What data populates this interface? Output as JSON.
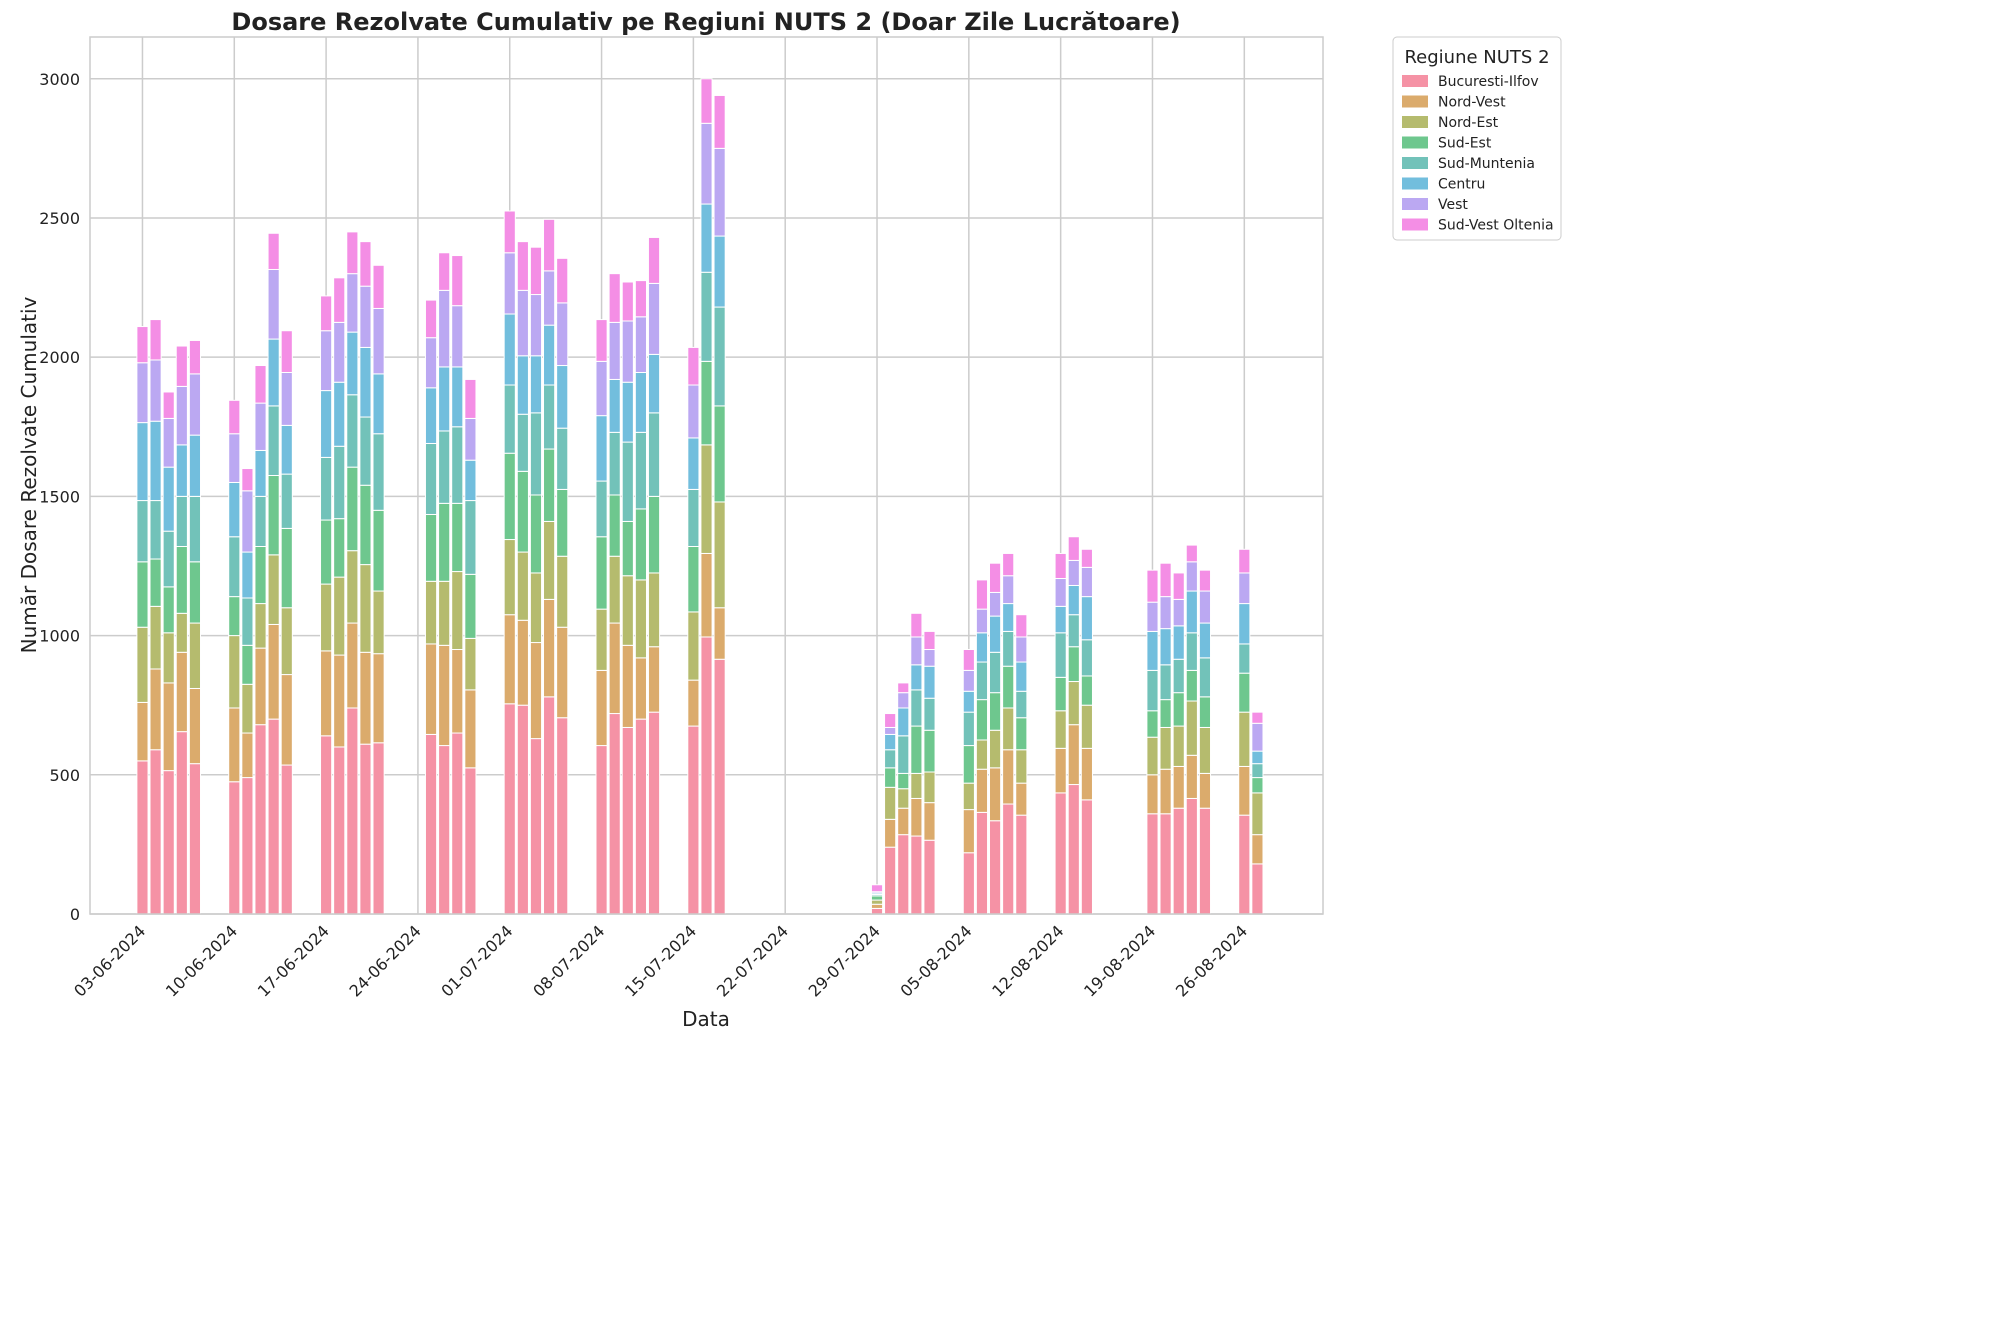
{
  "chart_data": {
    "type": "bar",
    "stacked": true,
    "title": "Dosare Rezolvate Cumulativ pe Regiuni NUTS 2 (Doar Zile Lucrătoare)",
    "xlabel": "Data",
    "ylabel": "Număr Dosare Rezolvate Cumulativ",
    "ylim": [
      0,
      3150
    ],
    "yticks": [
      0,
      500,
      1000,
      1500,
      2000,
      2500,
      3000
    ],
    "xticks": [
      "03-06-2024",
      "10-06-2024",
      "17-06-2024",
      "24-06-2024",
      "01-07-2024",
      "08-07-2024",
      "15-07-2024",
      "22-07-2024",
      "29-07-2024",
      "05-08-2024",
      "12-08-2024",
      "19-08-2024",
      "26-08-2024"
    ],
    "xlim_dates": [
      "30-05-2024",
      "01-09-2024"
    ],
    "grid": true,
    "legend": {
      "title": "Regiune NUTS 2",
      "placement": "outside-top-right"
    },
    "series_names": [
      "Bucuresti-Ilfov",
      "Nord-Vest",
      "Nord-Est",
      "Sud-Est",
      "Sud-Muntenia",
      "Centru",
      "Vest",
      "Sud-Vest Oltenia"
    ],
    "series_colors": [
      "#f592a5",
      "#dbab6c",
      "#b5bb6e",
      "#6ec78e",
      "#72c2b9",
      "#72bedd",
      "#bba8f2",
      "#f48ee5"
    ],
    "bars": [
      {
        "date": "03-06-2024",
        "values": [
          550,
          210,
          270,
          235,
          220,
          280,
          215,
          130
        ]
      },
      {
        "date": "04-06-2024",
        "values": [
          590,
          290,
          225,
          170,
          210,
          285,
          220,
          145
        ]
      },
      {
        "date": "05-06-2024",
        "values": [
          515,
          315,
          180,
          165,
          200,
          230,
          175,
          95
        ]
      },
      {
        "date": "06-06-2024",
        "values": [
          655,
          285,
          140,
          240,
          180,
          185,
          210,
          145
        ]
      },
      {
        "date": "07-06-2024",
        "values": [
          540,
          270,
          235,
          220,
          235,
          220,
          220,
          120
        ]
      },
      {
        "date": "10-06-2024",
        "values": [
          475,
          265,
          260,
          140,
          215,
          195,
          175,
          120
        ]
      },
      {
        "date": "11-06-2024",
        "values": [
          490,
          160,
          175,
          140,
          170,
          165,
          220,
          80
        ]
      },
      {
        "date": "12-06-2024",
        "values": [
          680,
          275,
          160,
          205,
          180,
          165,
          170,
          135
        ]
      },
      {
        "date": "13-06-2024",
        "values": [
          700,
          340,
          250,
          285,
          250,
          240,
          250,
          130
        ]
      },
      {
        "date": "14-06-2024",
        "values": [
          535,
          325,
          240,
          285,
          195,
          175,
          190,
          150
        ]
      },
      {
        "date": "17-06-2024",
        "values": [
          640,
          305,
          240,
          230,
          225,
          240,
          215,
          125
        ]
      },
      {
        "date": "18-06-2024",
        "values": [
          600,
          330,
          280,
          210,
          260,
          230,
          215,
          160
        ]
      },
      {
        "date": "19-06-2024",
        "values": [
          740,
          305,
          260,
          300,
          260,
          225,
          210,
          150
        ]
      },
      {
        "date": "20-06-2024",
        "values": [
          610,
          330,
          315,
          285,
          245,
          250,
          220,
          160
        ]
      },
      {
        "date": "21-06-2024",
        "values": [
          615,
          320,
          225,
          290,
          275,
          215,
          235,
          155
        ]
      },
      {
        "date": "25-06-2024",
        "values": [
          645,
          325,
          225,
          240,
          255,
          200,
          180,
          135
        ]
      },
      {
        "date": "26-06-2024",
        "values": [
          605,
          360,
          230,
          280,
          260,
          230,
          275,
          135
        ]
      },
      {
        "date": "27-06-2024",
        "values": [
          650,
          300,
          280,
          245,
          275,
          215,
          220,
          180
        ]
      },
      {
        "date": "28-06-2024",
        "values": [
          525,
          280,
          185,
          230,
          265,
          145,
          150,
          140
        ]
      },
      {
        "date": "01-07-2024",
        "values": [
          755,
          320,
          270,
          310,
          245,
          255,
          220,
          150
        ]
      },
      {
        "date": "02-07-2024",
        "values": [
          750,
          305,
          245,
          290,
          205,
          210,
          235,
          175
        ]
      },
      {
        "date": "03-07-2024",
        "values": [
          630,
          345,
          250,
          280,
          295,
          205,
          220,
          170
        ]
      },
      {
        "date": "04-07-2024",
        "values": [
          780,
          350,
          280,
          260,
          230,
          215,
          195,
          185
        ]
      },
      {
        "date": "05-07-2024",
        "values": [
          705,
          325,
          255,
          240,
          220,
          225,
          225,
          160
        ]
      },
      {
        "date": "08-07-2024",
        "values": [
          605,
          270,
          220,
          260,
          200,
          235,
          195,
          150
        ]
      },
      {
        "date": "09-07-2024",
        "values": [
          720,
          325,
          240,
          220,
          225,
          190,
          205,
          175
        ]
      },
      {
        "date": "10-07-2024",
        "values": [
          670,
          295,
          250,
          195,
          285,
          215,
          220,
          140
        ]
      },
      {
        "date": "11-07-2024",
        "values": [
          700,
          220,
          280,
          255,
          275,
          215,
          200,
          130
        ]
      },
      {
        "date": "12-07-2024",
        "values": [
          725,
          235,
          265,
          275,
          300,
          210,
          255,
          165
        ]
      },
      {
        "date": "15-07-2024",
        "values": [
          675,
          165,
          245,
          235,
          205,
          185,
          190,
          135
        ]
      },
      {
        "date": "16-07-2024",
        "values": [
          995,
          300,
          390,
          300,
          320,
          245,
          290,
          160
        ]
      },
      {
        "date": "17-07-2024",
        "values": [
          915,
          185,
          380,
          345,
          355,
          255,
          315,
          190
        ]
      },
      {
        "date": "29-07-2024",
        "values": [
          20,
          15,
          15,
          15,
          5,
          5,
          5,
          25
        ]
      },
      {
        "date": "30-07-2024",
        "values": [
          240,
          100,
          115,
          70,
          65,
          55,
          25,
          50
        ]
      },
      {
        "date": "31-07-2024",
        "values": [
          285,
          95,
          70,
          55,
          135,
          100,
          55,
          35
        ]
      },
      {
        "date": "01-08-2024",
        "values": [
          280,
          135,
          90,
          170,
          130,
          90,
          100,
          85
        ]
      },
      {
        "date": "02-08-2024",
        "values": [
          265,
          135,
          110,
          150,
          115,
          115,
          60,
          65
        ]
      },
      {
        "date": "05-08-2024",
        "values": [
          220,
          155,
          95,
          135,
          120,
          75,
          75,
          75
        ]
      },
      {
        "date": "06-08-2024",
        "values": [
          365,
          155,
          105,
          145,
          135,
          105,
          85,
          105
        ]
      },
      {
        "date": "07-08-2024",
        "values": [
          335,
          190,
          135,
          135,
          145,
          130,
          85,
          105
        ]
      },
      {
        "date": "08-08-2024",
        "values": [
          395,
          195,
          150,
          150,
          125,
          100,
          100,
          80
        ]
      },
      {
        "date": "09-08-2024",
        "values": [
          355,
          115,
          120,
          115,
          95,
          105,
          90,
          80
        ]
      },
      {
        "date": "12-08-2024",
        "values": [
          435,
          160,
          135,
          120,
          160,
          95,
          100,
          90
        ]
      },
      {
        "date": "13-08-2024",
        "values": [
          465,
          215,
          155,
          125,
          115,
          105,
          90,
          85
        ]
      },
      {
        "date": "14-08-2024",
        "values": [
          410,
          185,
          155,
          105,
          130,
          155,
          105,
          65
        ]
      },
      {
        "date": "19-08-2024",
        "values": [
          360,
          140,
          135,
          95,
          145,
          140,
          105,
          115
        ]
      },
      {
        "date": "20-08-2024",
        "values": [
          360,
          160,
          150,
          100,
          125,
          130,
          115,
          120
        ]
      },
      {
        "date": "21-08-2024",
        "values": [
          380,
          150,
          145,
          120,
          120,
          120,
          95,
          95
        ]
      },
      {
        "date": "22-08-2024",
        "values": [
          415,
          155,
          195,
          110,
          135,
          150,
          105,
          60
        ]
      },
      {
        "date": "23-08-2024",
        "values": [
          380,
          125,
          165,
          110,
          140,
          125,
          115,
          75
        ]
      },
      {
        "date": "26-08-2024",
        "values": [
          355,
          175,
          195,
          140,
          105,
          145,
          110,
          85
        ]
      },
      {
        "date": "27-08-2024",
        "values": [
          180,
          105,
          150,
          55,
          50,
          45,
          100,
          40
        ]
      }
    ]
  }
}
